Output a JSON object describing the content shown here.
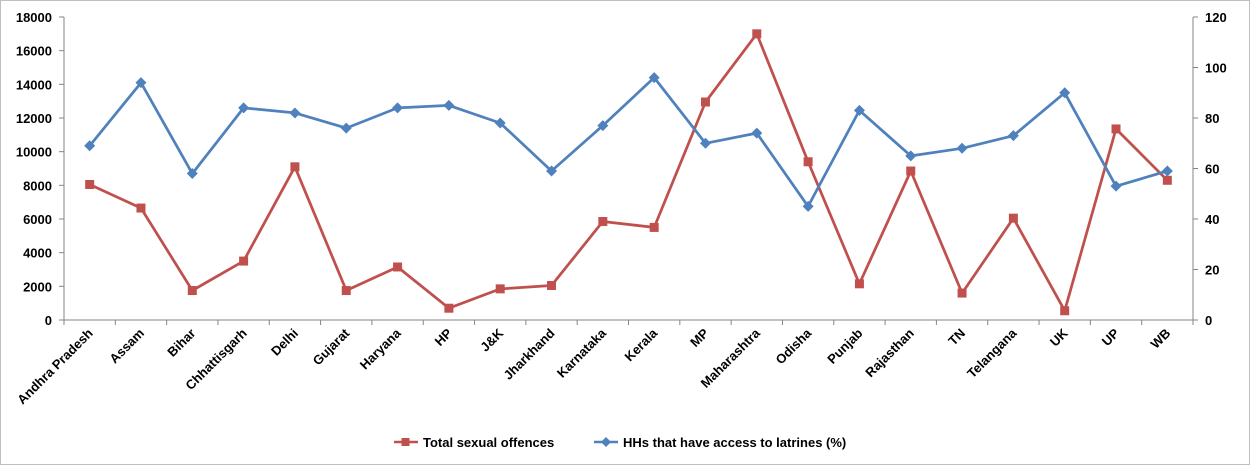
{
  "chart_data": {
    "type": "line",
    "categories": [
      "Andhra Pradesh",
      "Assam",
      "Bihar",
      "Chhattisgarh",
      "Delhi",
      "Gujarat",
      "Haryana",
      "HP",
      "J&K",
      "Jharkhand",
      "Karnataka",
      "Kerala",
      "MP",
      "Maharashtra",
      "Odisha",
      "Punjab",
      "Rajasthan",
      "TN",
      "Telangana",
      "UK",
      "UP",
      "WB"
    ],
    "series": [
      {
        "name": "Total sexual offences",
        "axis": "left",
        "color": "#c0504d",
        "marker": "square",
        "values": [
          8050,
          6650,
          1750,
          3500,
          9100,
          1750,
          3150,
          700,
          1850,
          2050,
          5850,
          5500,
          12950,
          17000,
          9400,
          2150,
          8850,
          1600,
          6050,
          550,
          11350,
          8300
        ]
      },
      {
        "name": "HHs that have access to latrines (%)",
        "axis": "right",
        "color": "#4f81bd",
        "marker": "diamond",
        "values": [
          69,
          94,
          58,
          84,
          82,
          76,
          84,
          85,
          78,
          59,
          77,
          96,
          70,
          74,
          45,
          83,
          65,
          68,
          73,
          90,
          53,
          59
        ]
      }
    ],
    "y_left": {
      "min": 0,
      "max": 18000,
      "ticks": [
        0,
        2000,
        4000,
        6000,
        8000,
        10000,
        12000,
        14000,
        16000,
        18000
      ]
    },
    "y_right": {
      "min": 0,
      "max": 120,
      "ticks": [
        0,
        20,
        40,
        60,
        80,
        100,
        120
      ]
    },
    "grid": false,
    "legend_position": "bottom"
  }
}
